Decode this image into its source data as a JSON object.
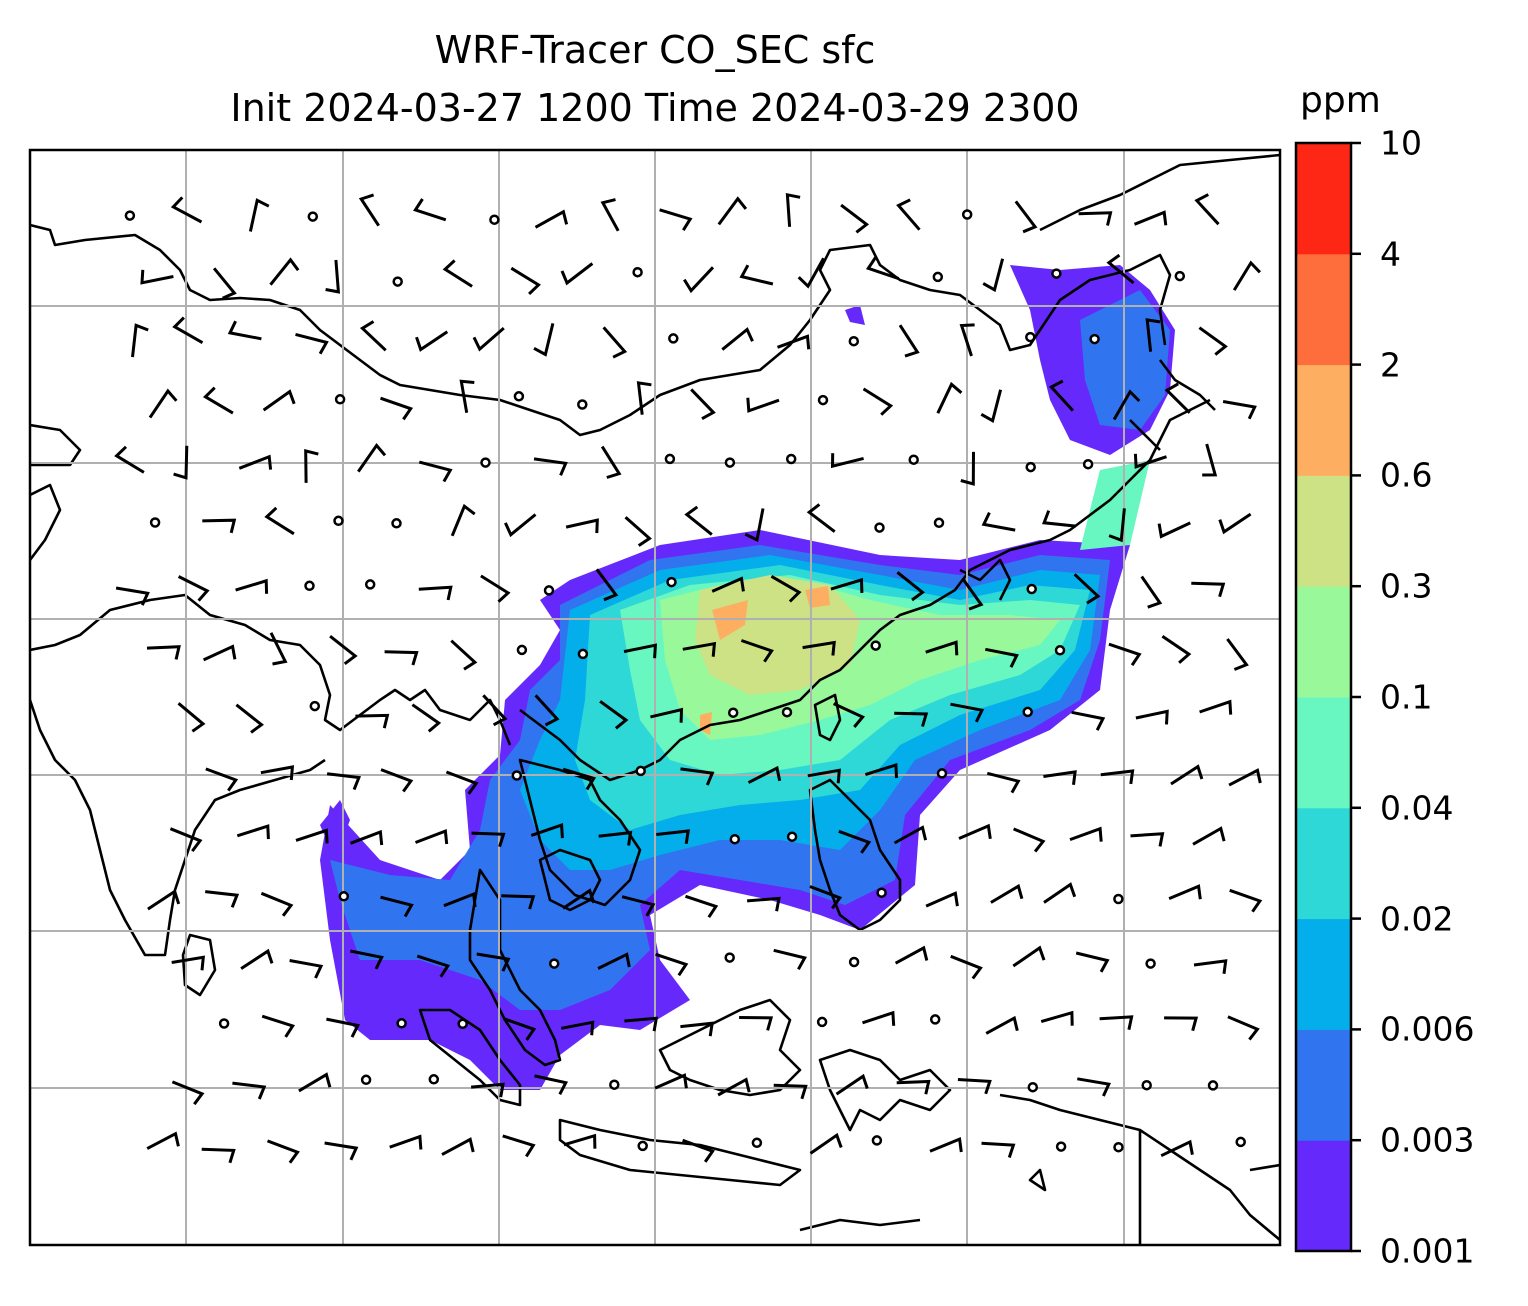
{
  "map": {
    "title_line1": "WRF-Tracer CO_SEC sfc",
    "title_line2": "Init 2024-03-27 1200 Time 2024-03-29 2300",
    "variable": "CO_SEC",
    "level": "sfc",
    "init_time": "2024-03-27 1200",
    "valid_time": "2024-03-29 2300",
    "wind_symbol": "wind barbs",
    "calm_symbol": "open circle",
    "gridlines": true
  },
  "colorbar": {
    "unit": "ppm",
    "tick_labels": [
      "0.001",
      "0.003",
      "0.006",
      "0.02",
      "0.04",
      "0.1",
      "0.3",
      "0.6",
      "2",
      "4",
      "10"
    ],
    "colors": [
      "#6629fb",
      "#3174f0",
      "#04aeea",
      "#2ed8d6",
      "#68f7c0",
      "#98f89a",
      "#cde285",
      "#feae61",
      "#fe6d3c",
      "#fe2716"
    ]
  }
}
